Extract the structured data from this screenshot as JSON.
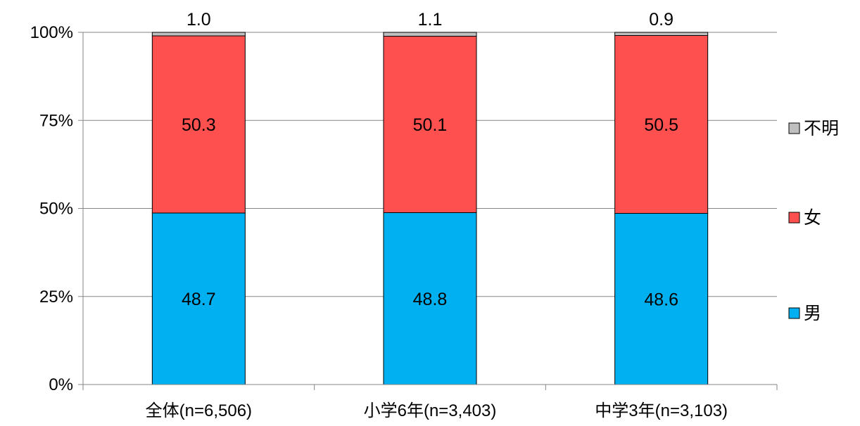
{
  "chart_data": {
    "type": "bar",
    "stacked": true,
    "percent": true,
    "categories": [
      "全体(n=6,506)",
      "小学6年(n=3,403)",
      "中学3年(n=3,103)"
    ],
    "series": [
      {
        "name": "男",
        "values": [
          48.7,
          48.8,
          48.6
        ],
        "color": "#00B0F0"
      },
      {
        "name": "女",
        "values": [
          50.3,
          50.1,
          50.5
        ],
        "color": "#FF5050"
      },
      {
        "name": "不明",
        "values": [
          1.0,
          1.1,
          0.9
        ],
        "color": "#BFBFBF"
      }
    ],
    "data_labels": [
      [
        "48.7",
        "48.8",
        "48.6"
      ],
      [
        "50.3",
        "50.1",
        "50.5"
      ],
      [
        "1.0",
        "1.1",
        "0.9"
      ]
    ],
    "y_ticks": [
      "0%",
      "25%",
      "50%",
      "75%",
      "100%"
    ],
    "ylim": [
      0,
      100
    ],
    "grid": true,
    "legend_position": "right"
  }
}
